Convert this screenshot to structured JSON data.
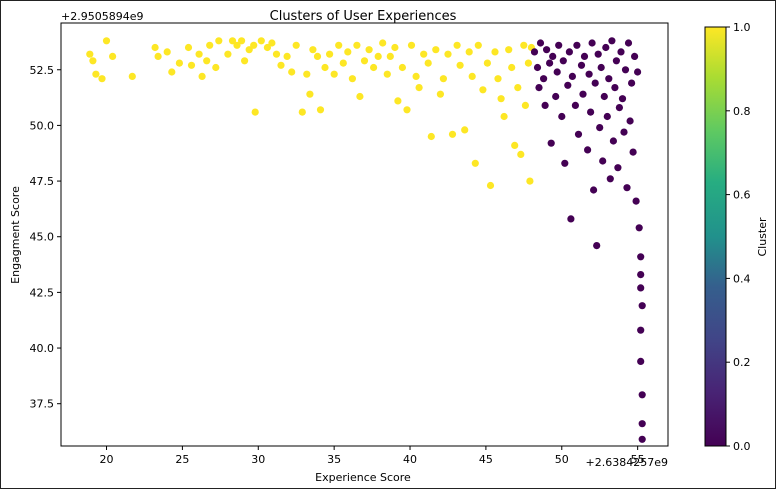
{
  "chart_data": {
    "type": "scatter",
    "title": "Clusters of User Experiences",
    "xlabel": "Experience Score",
    "ylabel": "Engagment Score",
    "x_offset_label": "+2.6384257e9",
    "y_offset_label": "+2.9505894e9",
    "xlim": [
      17,
      57
    ],
    "ylim": [
      35.6,
      54.6
    ],
    "x_ticks": [
      20,
      25,
      30,
      35,
      40,
      45,
      50,
      55
    ],
    "x_tick_labels": [
      "20",
      "25",
      "30",
      "35",
      "40",
      "45",
      "50",
      "55"
    ],
    "y_ticks": [
      37.5,
      40.0,
      42.5,
      45.0,
      47.5,
      50.0,
      52.5
    ],
    "y_tick_labels": [
      "37.5",
      "40.0",
      "42.5",
      "45.0",
      "47.5",
      "50.0",
      "52.5"
    ],
    "colorbar": {
      "label": "Cluster",
      "range": [
        0,
        1
      ],
      "ticks": [
        0.0,
        0.2,
        0.4,
        0.6,
        0.8,
        1.0
      ],
      "tick_labels": [
        "0.0",
        "0.2",
        "0.4",
        "0.6",
        "0.8",
        "1.0"
      ],
      "colormap": "viridis"
    },
    "colors": {
      "cluster_0": "#440154",
      "cluster_1": "#fde725"
    },
    "series": [
      {
        "cluster": 1,
        "points": [
          [
            18.9,
            53.2
          ],
          [
            19.1,
            52.9
          ],
          [
            19.3,
            52.3
          ],
          [
            19.7,
            52.1
          ],
          [
            20.0,
            53.8
          ],
          [
            20.4,
            53.1
          ],
          [
            21.7,
            52.2
          ],
          [
            23.2,
            53.5
          ],
          [
            23.4,
            53.1
          ],
          [
            24.0,
            53.3
          ],
          [
            24.3,
            52.4
          ],
          [
            24.8,
            52.8
          ],
          [
            25.4,
            53.5
          ],
          [
            25.6,
            52.7
          ],
          [
            26.1,
            53.2
          ],
          [
            26.3,
            52.2
          ],
          [
            26.6,
            52.9
          ],
          [
            26.8,
            53.6
          ],
          [
            27.2,
            52.6
          ],
          [
            27.4,
            53.8
          ],
          [
            28.0,
            53.2
          ],
          [
            28.3,
            53.8
          ],
          [
            28.6,
            53.6
          ],
          [
            28.9,
            53.8
          ],
          [
            29.1,
            52.9
          ],
          [
            29.4,
            53.4
          ],
          [
            29.7,
            53.6
          ],
          [
            29.8,
            50.6
          ],
          [
            30.2,
            53.8
          ],
          [
            30.6,
            53.5
          ],
          [
            30.9,
            53.7
          ],
          [
            31.2,
            53.2
          ],
          [
            31.5,
            52.7
          ],
          [
            31.9,
            53.1
          ],
          [
            32.2,
            52.4
          ],
          [
            32.5,
            53.6
          ],
          [
            32.9,
            50.6
          ],
          [
            33.2,
            52.3
          ],
          [
            33.4,
            51.4
          ],
          [
            33.6,
            53.4
          ],
          [
            33.9,
            53.1
          ],
          [
            34.1,
            50.7
          ],
          [
            34.4,
            52.6
          ],
          [
            34.7,
            53.2
          ],
          [
            35.0,
            52.3
          ],
          [
            35.3,
            53.6
          ],
          [
            35.6,
            52.8
          ],
          [
            35.9,
            53.3
          ],
          [
            36.2,
            52.1
          ],
          [
            36.5,
            53.6
          ],
          [
            36.7,
            51.3
          ],
          [
            37.0,
            52.9
          ],
          [
            37.3,
            53.4
          ],
          [
            37.6,
            52.6
          ],
          [
            37.9,
            53.1
          ],
          [
            38.2,
            53.7
          ],
          [
            38.5,
            52.3
          ],
          [
            38.7,
            53.1
          ],
          [
            39.0,
            53.5
          ],
          [
            39.2,
            51.1
          ],
          [
            39.5,
            52.6
          ],
          [
            39.8,
            50.7
          ],
          [
            40.1,
            53.6
          ],
          [
            40.4,
            52.2
          ],
          [
            40.6,
            51.7
          ],
          [
            40.9,
            53.2
          ],
          [
            41.2,
            52.8
          ],
          [
            41.4,
            49.5
          ],
          [
            41.7,
            53.4
          ],
          [
            42.0,
            51.4
          ],
          [
            42.2,
            52.1
          ],
          [
            42.5,
            53.2
          ],
          [
            42.8,
            49.6
          ],
          [
            43.1,
            53.6
          ],
          [
            43.3,
            52.7
          ],
          [
            43.6,
            49.8
          ],
          [
            43.9,
            53.3
          ],
          [
            44.1,
            52.2
          ],
          [
            44.3,
            48.3
          ],
          [
            44.5,
            53.6
          ],
          [
            44.8,
            51.6
          ],
          [
            45.1,
            52.8
          ],
          [
            45.3,
            47.3
          ],
          [
            45.6,
            53.3
          ],
          [
            45.8,
            52.1
          ],
          [
            46.0,
            51.2
          ],
          [
            46.2,
            50.4
          ],
          [
            46.5,
            53.4
          ],
          [
            46.7,
            52.6
          ],
          [
            46.9,
            49.1
          ],
          [
            47.1,
            51.7
          ],
          [
            47.3,
            48.7
          ],
          [
            47.5,
            53.6
          ],
          [
            47.6,
            50.9
          ],
          [
            47.8,
            52.8
          ],
          [
            47.9,
            47.5
          ],
          [
            48.0,
            53.5
          ]
        ]
      },
      {
        "cluster": 0,
        "points": [
          [
            48.2,
            53.3
          ],
          [
            48.4,
            52.6
          ],
          [
            48.5,
            51.7
          ],
          [
            48.6,
            53.7
          ],
          [
            48.8,
            52.1
          ],
          [
            48.9,
            50.9
          ],
          [
            49.0,
            53.4
          ],
          [
            49.2,
            52.8
          ],
          [
            49.3,
            49.2
          ],
          [
            49.4,
            53.1
          ],
          [
            49.6,
            51.3
          ],
          [
            49.7,
            52.4
          ],
          [
            49.8,
            53.6
          ],
          [
            50.0,
            50.4
          ],
          [
            50.1,
            52.9
          ],
          [
            50.2,
            48.3
          ],
          [
            50.4,
            51.8
          ],
          [
            50.5,
            53.3
          ],
          [
            50.6,
            45.8
          ],
          [
            50.7,
            52.2
          ],
          [
            50.9,
            50.9
          ],
          [
            51.0,
            53.6
          ],
          [
            51.1,
            49.6
          ],
          [
            51.3,
            52.7
          ],
          [
            51.4,
            51.4
          ],
          [
            51.5,
            53.1
          ],
          [
            51.7,
            48.9
          ],
          [
            51.8,
            52.3
          ],
          [
            51.9,
            50.6
          ],
          [
            52.0,
            53.7
          ],
          [
            52.1,
            47.1
          ],
          [
            52.2,
            51.9
          ],
          [
            52.3,
            44.6
          ],
          [
            52.4,
            53.2
          ],
          [
            52.5,
            49.9
          ],
          [
            52.6,
            52.6
          ],
          [
            52.7,
            48.4
          ],
          [
            52.8,
            51.3
          ],
          [
            52.9,
            53.5
          ],
          [
            53.0,
            50.4
          ],
          [
            53.1,
            52.1
          ],
          [
            53.2,
            47.6
          ],
          [
            53.3,
            53.8
          ],
          [
            53.4,
            49.3
          ],
          [
            53.5,
            51.7
          ],
          [
            53.6,
            52.9
          ],
          [
            53.7,
            48.1
          ],
          [
            53.8,
            50.8
          ],
          [
            53.9,
            53.3
          ],
          [
            54.0,
            51.2
          ],
          [
            54.1,
            49.7
          ],
          [
            54.2,
            52.5
          ],
          [
            54.3,
            47.2
          ],
          [
            54.4,
            53.7
          ],
          [
            54.5,
            50.2
          ],
          [
            54.6,
            51.9
          ],
          [
            54.7,
            48.8
          ],
          [
            54.8,
            53.1
          ],
          [
            54.9,
            46.6
          ],
          [
            55.0,
            52.4
          ],
          [
            55.1,
            45.4
          ],
          [
            55.2,
            44.1
          ],
          [
            55.2,
            42.7
          ],
          [
            55.2,
            40.8
          ],
          [
            55.2,
            39.4
          ],
          [
            55.3,
            37.9
          ],
          [
            55.3,
            36.6
          ],
          [
            55.3,
            35.9
          ],
          [
            55.3,
            41.9
          ],
          [
            55.2,
            43.3
          ]
        ]
      }
    ]
  }
}
